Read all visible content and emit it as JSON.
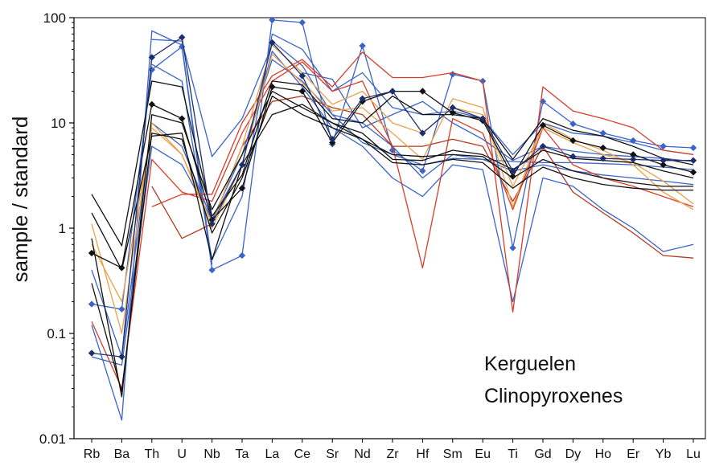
{
  "chart_data": {
    "type": "line",
    "title": "",
    "xlabel": "",
    "ylabel": "sample / standard",
    "yscale": "log",
    "ylim": [
      0.01,
      100
    ],
    "yticks": [
      0.01,
      0.1,
      1,
      10,
      100
    ],
    "ytick_labels": [
      "0.01",
      "0.1",
      "1",
      "10",
      "100"
    ],
    "grid": false,
    "annotation_lines": [
      "Kerguelen",
      "Clinopyroxenes"
    ],
    "categories": [
      "Rb",
      "Ba",
      "Th",
      "U",
      "Nb",
      "Ta",
      "La",
      "Ce",
      "Sr",
      "Nd",
      "Zr",
      "Hf",
      "Sm",
      "Eu",
      "Ti",
      "Gd",
      "Dy",
      "Ho",
      "Er",
      "Yb",
      "Lu"
    ],
    "series": [
      {
        "color": "#3a64c8",
        "marker": false,
        "values": [
          0.12,
          0.015,
          75,
          55,
          0.45,
          null,
          60,
          35,
          12,
          6.5,
          5,
          4,
          4.6,
          4.5,
          4.3,
          4.2,
          4.2,
          4.1,
          4,
          3.8,
          3.6
        ]
      },
      {
        "color": "#3a64c8",
        "marker": "diamond",
        "values": [
          0.19,
          0.17,
          32,
          53,
          0.4,
          0.55,
          95,
          90,
          6.3,
          54,
          5.5,
          3.5,
          29,
          25,
          0.65,
          16,
          9.8,
          8,
          6.8,
          6,
          5.8
        ]
      },
      {
        "color": "#3a64c8",
        "marker": false,
        "values": [
          null,
          null,
          62,
          60,
          4.8,
          11,
          55,
          30,
          26,
          9,
          12,
          16,
          10,
          7,
          4.4,
          6,
          5.4,
          5,
          4.8,
          4.6,
          4.3
        ]
      },
      {
        "color": "#3a64c8",
        "marker": false,
        "values": [
          null,
          null,
          36,
          25,
          0.5,
          2,
          70,
          50,
          20,
          30,
          14,
          12,
          13,
          11,
          5,
          10,
          8,
          7.5,
          6.5,
          5.5,
          5
        ]
      },
      {
        "color": "#3a64c8",
        "marker": false,
        "values": [
          0.06,
          0.05,
          6,
          4,
          1.2,
          4,
          48,
          22,
          9,
          6,
          3,
          2,
          4,
          3.6,
          0.2,
          3,
          2.5,
          1.5,
          1,
          0.6,
          0.7
        ]
      },
      {
        "color": "#3a64c8",
        "marker": false,
        "values": [
          0.4,
          0.06,
          10,
          6,
          1.2,
          5,
          40,
          25,
          12,
          10,
          6,
          3,
          5,
          4.5,
          3.5,
          4,
          3.5,
          3.2,
          3,
          2.8,
          2.6
        ]
      },
      {
        "color": "#d93b2a",
        "marker": false,
        "values": [
          null,
          null,
          1.6,
          2.1,
          2.1,
          10,
          28,
          40,
          22,
          47,
          27,
          27,
          30,
          25,
          0.16,
          22,
          13,
          11,
          9,
          5.5,
          5
        ]
      },
      {
        "color": "#d93b2a",
        "marker": false,
        "values": [
          0.13,
          0.03,
          4.5,
          2.2,
          1.8,
          8,
          25,
          38,
          20,
          25,
          6,
          0.42,
          11,
          8,
          1.5,
          9,
          4,
          3,
          2.5,
          2,
          1.6
        ]
      },
      {
        "color": "#b23a20",
        "marker": false,
        "values": [
          null,
          null,
          2.5,
          0.8,
          1.1,
          6,
          16,
          18,
          14,
          12,
          6,
          6,
          7,
          6,
          1.8,
          6,
          2.2,
          1.4,
          0.9,
          0.55,
          0.52
        ]
      },
      {
        "color": "#e8a24a",
        "marker": false,
        "values": [
          1.1,
          0.1,
          10,
          5,
          1,
          4,
          45,
          24,
          13,
          14,
          8,
          4.5,
          17,
          14,
          1.6,
          10,
          7,
          5.5,
          4,
          2.2,
          1.5
        ]
      },
      {
        "color": "#e8a24a",
        "marker": false,
        "values": [
          0.7,
          0.2,
          9,
          5,
          1.1,
          6,
          55,
          30,
          15,
          20,
          10,
          8,
          14,
          12,
          2.5,
          9,
          6.5,
          5,
          4.2,
          2.8,
          1.7
        ]
      },
      {
        "color": "#111111",
        "marker": "diamond",
        "values": [
          0.58,
          0.42,
          15,
          11,
          1.2,
          2.4,
          22,
          20,
          6.5,
          16,
          20,
          20,
          12.5,
          10.5,
          3.1,
          9.5,
          6.8,
          5.8,
          5,
          4,
          3.4
        ]
      },
      {
        "color": "#111111",
        "marker": false,
        "values": [
          2.1,
          0.68,
          25,
          22,
          1.3,
          3.2,
          25,
          23,
          11,
          10,
          18,
          12,
          12,
          11,
          4.5,
          11,
          8.5,
          7.5,
          6,
          4.6,
          4
        ]
      },
      {
        "color": "#111111",
        "marker": false,
        "values": [
          1.4,
          0.4,
          7.5,
          8,
          0.5,
          4,
          12,
          15,
          10,
          8,
          4.5,
          4.4,
          5.5,
          5,
          3.6,
          5.5,
          4.6,
          4.4,
          4.2,
          3.5,
          3
        ]
      },
      {
        "color": "#111111",
        "marker": false,
        "values": [
          0.8,
          0.025,
          12,
          10,
          1.5,
          5,
          20,
          14,
          10,
          7,
          5,
          4.8,
          5,
          4.8,
          3,
          4.5,
          3.5,
          3,
          2.7,
          2.5,
          2.5
        ]
      },
      {
        "color": "#111111",
        "marker": false,
        "values": [
          0.3,
          0.028,
          8,
          7,
          0.9,
          3,
          18,
          12,
          9,
          7,
          4.2,
          4,
          4.5,
          4.2,
          2.4,
          3.8,
          3,
          2.6,
          2.4,
          2.3,
          2.3
        ]
      },
      {
        "color": "#1c2e6e",
        "marker": "diamond",
        "values": [
          0.065,
          0.06,
          42,
          65,
          1.1,
          4,
          58,
          28,
          7,
          17,
          20,
          8,
          14,
          11,
          3.5,
          6,
          4.8,
          4.6,
          4.5,
          4.4,
          4.4
        ]
      }
    ]
  }
}
